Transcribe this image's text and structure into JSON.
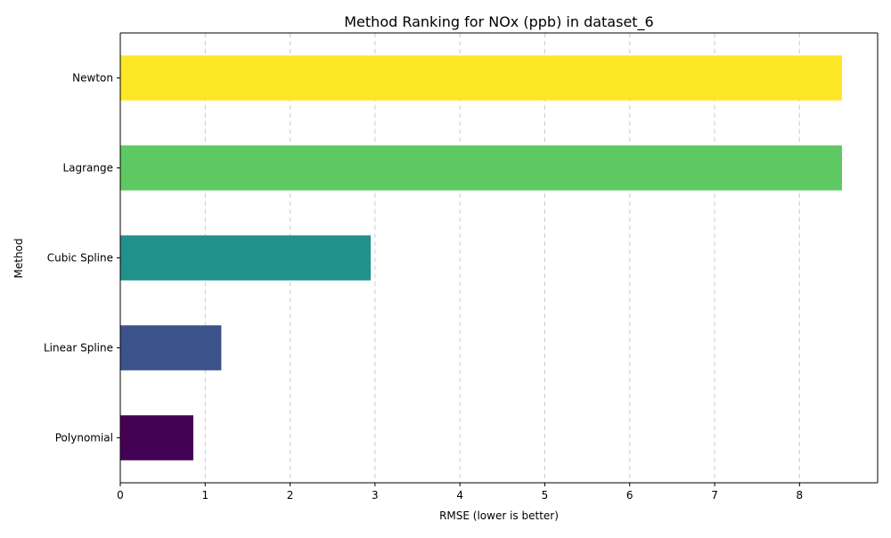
{
  "chart_data": {
    "type": "bar",
    "orientation": "horizontal",
    "title": "Method Ranking for NOx (ppb) in dataset_6",
    "xlabel": "RMSE (lower is better)",
    "ylabel": "Method",
    "categories": [
      "Polynomial",
      "Linear Spline",
      "Cubic Spline",
      "Lagrange",
      "Newton"
    ],
    "values": [
      0.86,
      1.19,
      2.95,
      8.5,
      8.5
    ],
    "colors": [
      "#440154",
      "#3b528b",
      "#21918c",
      "#5ec962",
      "#fde725"
    ],
    "xlim": [
      0,
      8.92
    ],
    "xticks": [
      0,
      1,
      2,
      3,
      4,
      5,
      6,
      7,
      8
    ],
    "grid": "x-dashed",
    "legend": "none"
  }
}
